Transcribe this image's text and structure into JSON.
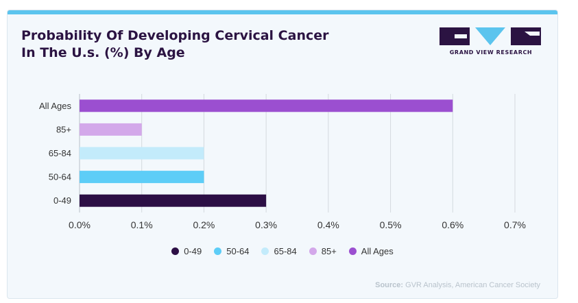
{
  "title_lines": [
    "Probability Of Developing Cervical Cancer",
    "In The U.s. (%) By Age"
  ],
  "brand": {
    "name": "GRAND VIEW RESEARCH"
  },
  "source": {
    "label": "Source:",
    "text": "GVR Analysis, American Cancer Society"
  },
  "chart_data": {
    "type": "bar",
    "orientation": "horizontal",
    "categories": [
      "All Ages",
      "85+",
      "65-84",
      "50-64",
      "0-49"
    ],
    "values": [
      0.6,
      0.1,
      0.2,
      0.2,
      0.3
    ],
    "colors": [
      "#9b4fd0",
      "#d3a8ea",
      "#c3ebfb",
      "#5dcdf7",
      "#2c0f45"
    ],
    "xlim": [
      0,
      0.7
    ],
    "xticks": [
      0,
      0.1,
      0.2,
      0.3,
      0.4,
      0.5,
      0.6,
      0.7
    ],
    "xtick_labels": [
      "0.0%",
      "0.1%",
      "0.2%",
      "0.3%",
      "0.4%",
      "0.5%",
      "0.6%",
      "0.7%"
    ],
    "grid": true,
    "legend_position": "bottom",
    "legend": [
      {
        "label": "0-49",
        "color": "#2c0f45"
      },
      {
        "label": "50-64",
        "color": "#5dcdf7"
      },
      {
        "label": "65-84",
        "color": "#c3ebfb"
      },
      {
        "label": "85+",
        "color": "#d3a8ea"
      },
      {
        "label": "All Ages",
        "color": "#9b4fd0"
      }
    ]
  }
}
